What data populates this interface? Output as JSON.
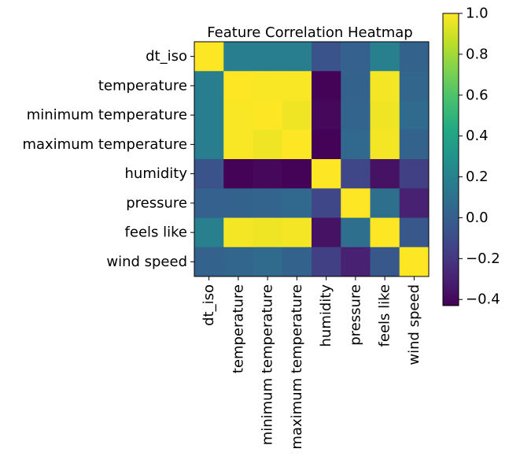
{
  "chart_data": {
    "type": "heatmap",
    "title": "Feature Correlation Heatmap",
    "xlabel": "",
    "ylabel": "",
    "rows": [
      "dt_iso",
      "temperature",
      "minimum temperature",
      "maximum temperature",
      "humidity",
      "pressure",
      "feels like",
      "wind speed"
    ],
    "columns": [
      "dt_iso",
      "temperature",
      "minimum temperature",
      "maximum temperature",
      "humidity",
      "pressure",
      "feels like",
      "wind speed"
    ],
    "values": [
      [
        1.0,
        0.17,
        0.17,
        0.17,
        -0.06,
        0.01,
        0.18,
        0.02
      ],
      [
        0.17,
        1.0,
        0.99,
        0.99,
        -0.42,
        0.02,
        0.98,
        0.04
      ],
      [
        0.17,
        0.99,
        1.0,
        0.97,
        -0.4,
        0.03,
        0.97,
        0.06
      ],
      [
        0.17,
        0.99,
        0.97,
        1.0,
        -0.42,
        0.05,
        0.98,
        0.02
      ],
      [
        -0.06,
        -0.42,
        -0.4,
        -0.42,
        1.0,
        -0.13,
        -0.36,
        -0.16
      ],
      [
        0.01,
        0.02,
        0.03,
        0.05,
        -0.13,
        1.0,
        0.09,
        -0.3
      ],
      [
        0.18,
        0.98,
        0.97,
        0.98,
        -0.36,
        0.09,
        1.0,
        -0.04
      ],
      [
        0.02,
        0.04,
        0.06,
        0.02,
        -0.16,
        -0.3,
        -0.04,
        1.0
      ]
    ],
    "colormap": "viridis",
    "vmin": -0.43,
    "vmax": 1.0,
    "colorbar_ticks": [
      "1.0",
      "0.8",
      "0.6",
      "0.4",
      "0.2",
      "0.0",
      "−0.2",
      "−0.4"
    ],
    "colorbar_tick_values": [
      1.0,
      0.8,
      0.6,
      0.4,
      0.2,
      0.0,
      -0.2,
      -0.4
    ],
    "grid": false,
    "legend": "colorbar-right"
  }
}
